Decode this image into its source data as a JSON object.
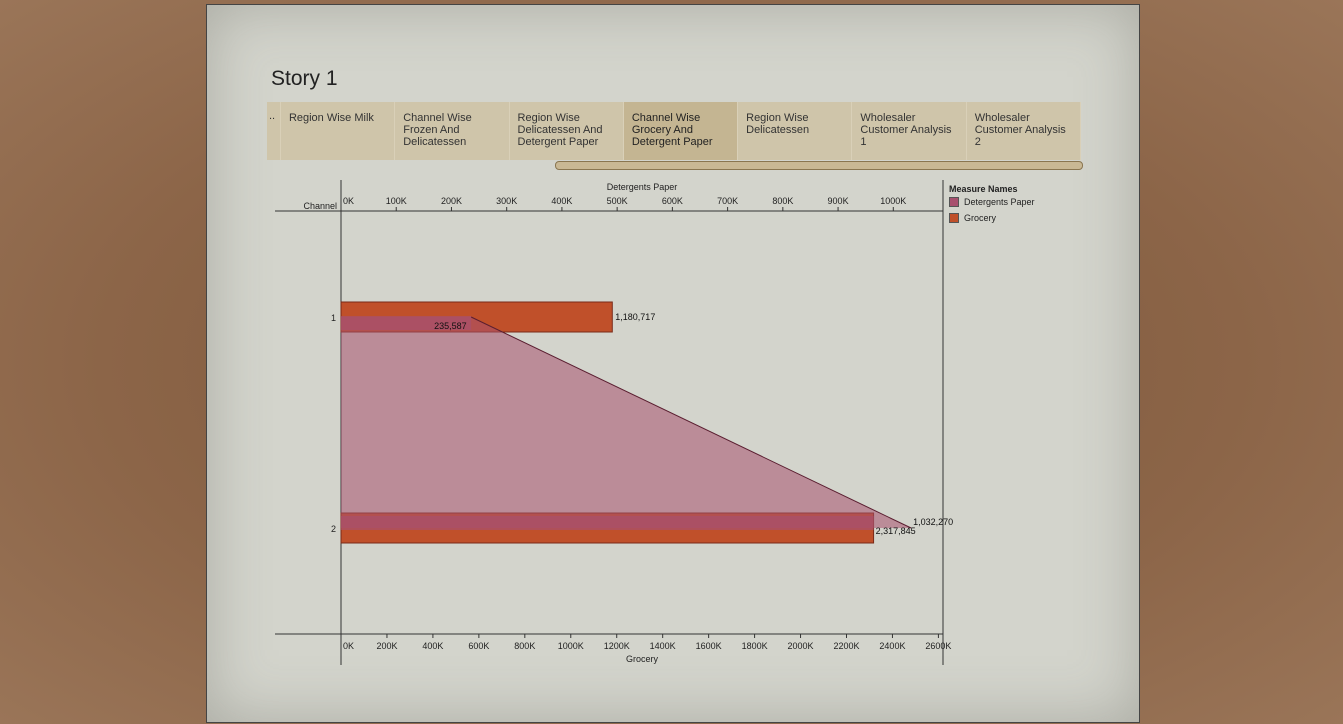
{
  "story": {
    "title": "Story 1"
  },
  "tabs": {
    "ellipsis": "..",
    "items": [
      {
        "label": "Region Wise Milk",
        "active": false
      },
      {
        "label": "Channel Wise\nFrozen And\nDelicatessen",
        "active": false
      },
      {
        "label": "Region Wise\nDelicatessen And\nDetergent Paper",
        "active": false
      },
      {
        "label": "Channel Wise\nGrocery And\nDetergent Paper",
        "active": true
      },
      {
        "label": "Region Wise\nDelicatessen",
        "active": false
      },
      {
        "label": "Wholesaler\nCustomer Analysis 1",
        "active": false
      },
      {
        "label": "Wholesaler\nCustomer Analysis 2",
        "active": false
      }
    ]
  },
  "legend": {
    "title": "Measure Names",
    "items": [
      {
        "label": "Detergents Paper",
        "color": "#a8506e"
      },
      {
        "label": "Grocery",
        "color": "#c0502a"
      }
    ]
  },
  "chart_data": {
    "type": "bar",
    "row_header": "Channel",
    "categories": [
      "1",
      "2"
    ],
    "top_axis": {
      "title": "Detergents Paper",
      "min": 0,
      "max": 1090000,
      "ticks": [
        0,
        100000,
        200000,
        300000,
        400000,
        500000,
        600000,
        700000,
        800000,
        900000,
        1000000
      ],
      "tick_labels": [
        "0K",
        "100K",
        "200K",
        "300K",
        "400K",
        "500K",
        "600K",
        "700K",
        "800K",
        "900K",
        "1000K"
      ]
    },
    "bottom_axis": {
      "title": "Grocery",
      "min": 0,
      "max": 2620000,
      "ticks": [
        0,
        200000,
        400000,
        600000,
        800000,
        1000000,
        1200000,
        1400000,
        1600000,
        1800000,
        2000000,
        2200000,
        2400000,
        2600000
      ],
      "tick_labels": [
        "0K",
        "200K",
        "400K",
        "600K",
        "800K",
        "1000K",
        "1200K",
        "1400K",
        "1600K",
        "1800K",
        "2000K",
        "2200K",
        "2400K",
        "2600K"
      ]
    },
    "series": [
      {
        "name": "Grocery",
        "axis": "bottom",
        "values": [
          1180717,
          2317845
        ],
        "labels": [
          "1,180,717",
          "2,317,845"
        ],
        "color": "#c0502a"
      },
      {
        "name": "Detergents Paper",
        "axis": "top",
        "values": [
          235587,
          1032270
        ],
        "labels": [
          "235,587",
          "1,032,270"
        ],
        "color": "#a8506e"
      }
    ],
    "grid": false,
    "legend_position": "right"
  }
}
